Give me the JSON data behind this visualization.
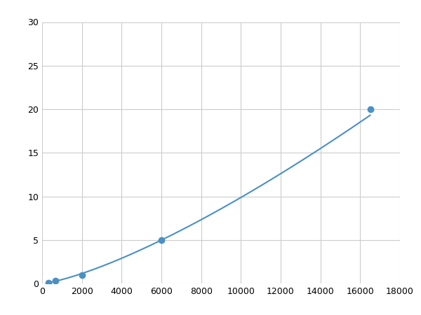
{
  "x_points": [
    333,
    667,
    2000,
    6000,
    16500
  ],
  "y_points": [
    0.1,
    0.3,
    1.0,
    5.0,
    20.0
  ],
  "line_color": "#4A90C4",
  "marker_color": "#4A90C4",
  "marker_size": 6,
  "line_width": 1.5,
  "xlim": [
    0,
    18000
  ],
  "ylim": [
    0,
    30
  ],
  "xticks": [
    0,
    2000,
    4000,
    6000,
    8000,
    10000,
    12000,
    14000,
    16000,
    18000
  ],
  "yticks": [
    0,
    5,
    10,
    15,
    20,
    25,
    30
  ],
  "grid_color": "#cccccc",
  "background_color": "#ffffff",
  "tick_fontsize": 9,
  "figure_width": 6.0,
  "figure_height": 4.5,
  "dpi": 100
}
